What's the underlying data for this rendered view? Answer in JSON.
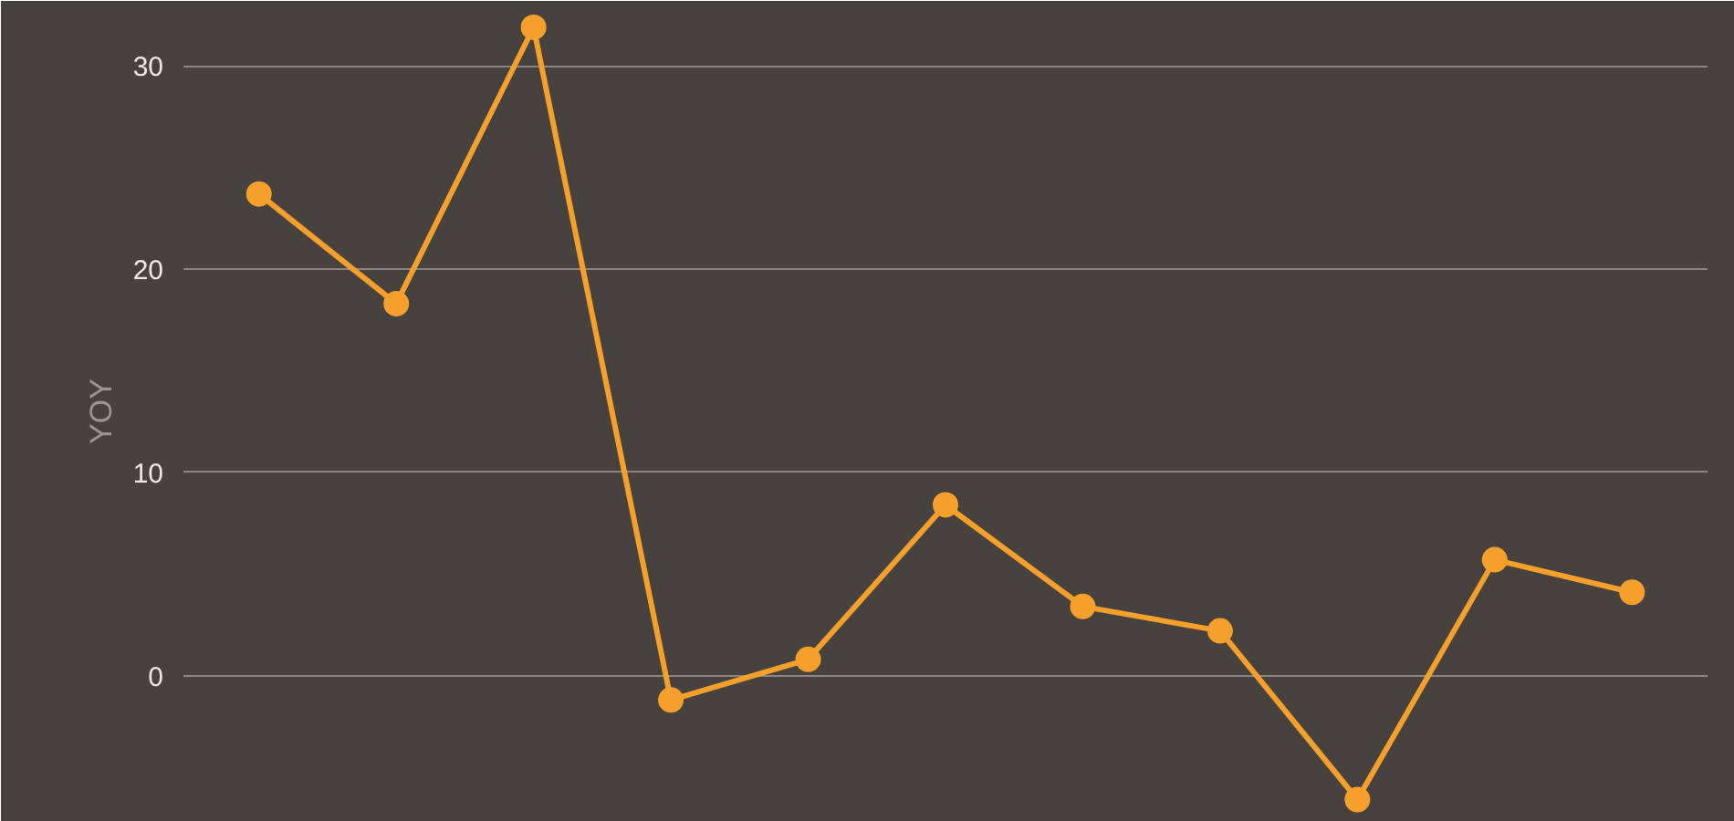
{
  "chart_data": {
    "type": "line",
    "ylabel": "YOY",
    "categories": [
      null,
      null,
      null,
      null,
      null,
      null,
      null,
      null,
      null,
      null,
      null
    ],
    "series": [
      {
        "color": "#f5a02c",
        "values": [
          23.7,
          18.3,
          31.9,
          -1.2,
          0.8,
          8.4,
          3.4,
          2.2,
          -6.1,
          5.7,
          4.1
        ]
      }
    ],
    "ylim": [
      -7.2,
      33.2
    ],
    "yticks": [
      0,
      10,
      20,
      30
    ],
    "grid": "y",
    "marker": "circle",
    "line_style": "solid",
    "tick_labels": "y"
  }
}
